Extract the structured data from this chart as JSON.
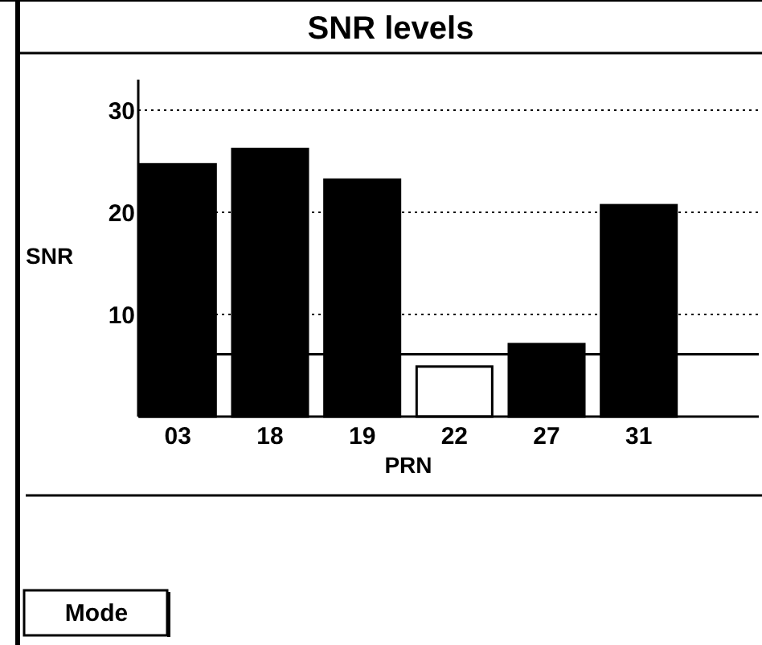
{
  "chart_data": {
    "type": "bar",
    "title": "SNR levels",
    "xlabel": "PRN",
    "ylabel": "SNR",
    "categories": [
      "03",
      "18",
      "19",
      "22",
      "27",
      "31"
    ],
    "values": [
      24.7,
      26.2,
      23.2,
      4.9,
      7.1,
      20.7
    ],
    "colors": [
      "#000000",
      "#000000",
      "#000000",
      "#ffffff",
      "#000000",
      "#000000"
    ],
    "ylim": [
      0,
      33
    ],
    "yticks": [
      10,
      20,
      30
    ],
    "grid": "y",
    "ref_lines": [
      {
        "axis": "y",
        "value": 6.1,
        "color": "#000000",
        "line_style": "solid"
      }
    ],
    "annotations": [
      "Mode"
    ]
  }
}
